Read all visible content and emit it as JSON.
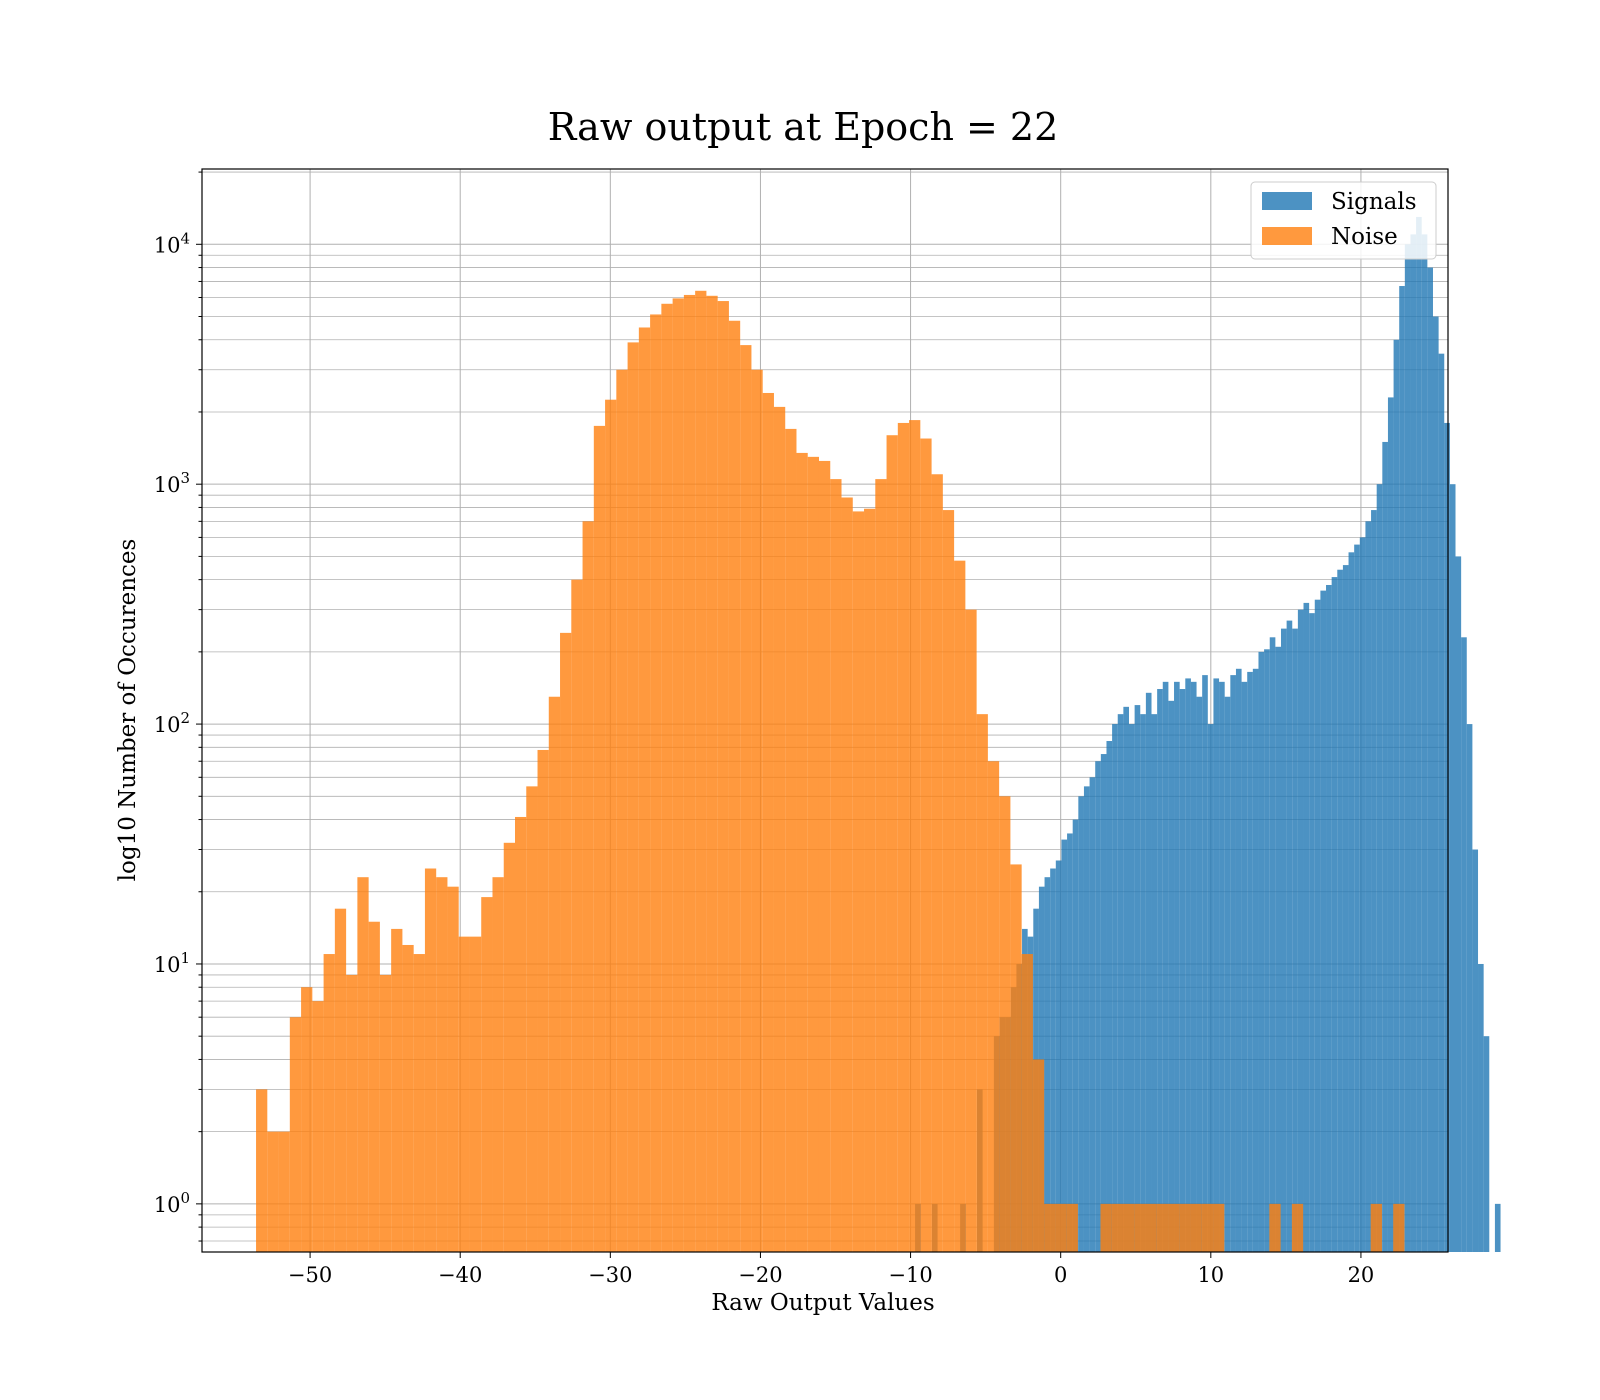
{
  "chart_data": {
    "type": "histogram",
    "title": "Raw output at Epoch = 22",
    "xlabel": "Raw Output Values",
    "ylabel": "log10 Number of Occurences",
    "xlim": [
      -57.2,
      25.8
    ],
    "ylim": [
      0.63,
      20600
    ],
    "yscale": "log",
    "grid": true,
    "legend_position": "top-right",
    "x_ticks": [
      -50,
      -40,
      -30,
      -20,
      -10,
      0,
      10,
      20
    ],
    "x_tick_labels": [
      "−50",
      "−40",
      "−30",
      "−20",
      "−10",
      "0",
      "10",
      "20"
    ],
    "y_ticks": [
      1,
      10,
      100,
      1000,
      10000
    ],
    "y_tick_labels": [
      {
        "base": "10",
        "exp": "0"
      },
      {
        "base": "10",
        "exp": "1"
      },
      {
        "base": "10",
        "exp": "2"
      },
      {
        "base": "10",
        "exp": "3"
      },
      {
        "base": "10",
        "exp": "4"
      }
    ],
    "series": [
      {
        "name": "Signals",
        "color": "#1f77b4",
        "bin_start": -9.7,
        "bin_width": 0.375,
        "values": [
          1,
          0,
          0,
          1,
          0,
          0,
          0,
          0,
          1,
          0,
          0,
          3,
          0,
          0,
          5,
          6,
          6,
          8,
          10,
          14,
          13,
          17,
          21,
          23,
          25,
          27,
          33,
          35,
          40,
          50,
          55,
          60,
          70,
          75,
          85,
          100,
          110,
          118,
          100,
          120,
          110,
          135,
          110,
          140,
          150,
          125,
          150,
          140,
          155,
          150,
          130,
          160,
          100,
          155,
          150,
          130,
          160,
          170,
          150,
          165,
          170,
          200,
          205,
          230,
          210,
          250,
          270,
          250,
          300,
          320,
          290,
          330,
          360,
          380,
          410,
          440,
          460,
          520,
          560,
          600,
          700,
          780,
          1000,
          1500,
          2300,
          4000,
          6700,
          10000,
          11000,
          13000,
          11000,
          8000,
          5000,
          3500,
          1800,
          1000,
          500,
          230,
          100,
          30,
          10,
          5,
          0,
          1
        ]
      },
      {
        "name": "Noise",
        "color": "#ff7f0e",
        "bin_start": -53.6,
        "bin_width": 0.75,
        "values": [
          3,
          2,
          2,
          6,
          8,
          7,
          11,
          17,
          9,
          23,
          15,
          9,
          14,
          12,
          11,
          25,
          23,
          21,
          13,
          13,
          19,
          23,
          32,
          41,
          55,
          78,
          130,
          240,
          400,
          700,
          1750,
          2250,
          3000,
          3900,
          4500,
          5100,
          5650,
          5950,
          6150,
          6400,
          6100,
          5800,
          4800,
          3800,
          3000,
          2400,
          2100,
          1700,
          1350,
          1300,
          1250,
          1050,
          880,
          770,
          790,
          1050,
          1600,
          1800,
          1850,
          1550,
          1100,
          780,
          480,
          300,
          110,
          70,
          50,
          26,
          11,
          4,
          1,
          1,
          1,
          0,
          0,
          1,
          1,
          1,
          1,
          1,
          1,
          1,
          1,
          1,
          1,
          1,
          0,
          0,
          0,
          0,
          1,
          0,
          1,
          0,
          0,
          0,
          0,
          0,
          0,
          1,
          0,
          1
        ]
      }
    ]
  }
}
